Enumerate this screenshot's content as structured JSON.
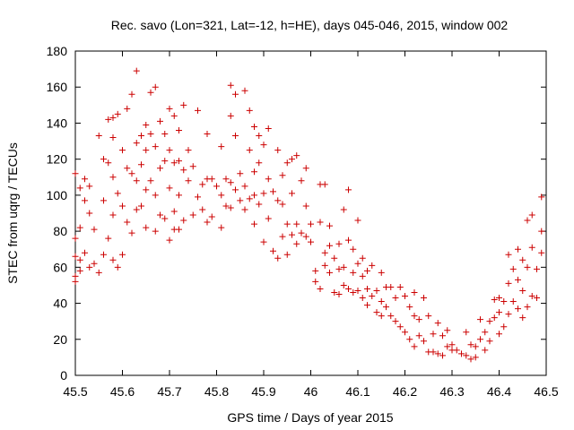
{
  "chart_data": {
    "type": "scatter",
    "title": "Rec. savo (Lon=321, Lat=-12, h=HE), days 045-046, 2015, window 002",
    "xlabel": "GPS time / Days of year 2015",
    "ylabel": "STEC from uqrg / TECUs",
    "xlim": [
      45.5,
      46.5
    ],
    "ylim": [
      0,
      180
    ],
    "xticks": [
      45.5,
      45.6,
      45.7,
      45.8,
      45.9,
      46,
      46.1,
      46.2,
      46.3,
      46.4,
      46.5
    ],
    "xtick_labels": [
      "45.5",
      "45.6",
      "45.7",
      "45.8",
      "45.9",
      "46",
      "46.1",
      "46.2",
      "46.3",
      "46.4",
      "46.5"
    ],
    "yticks": [
      0,
      20,
      40,
      60,
      80,
      100,
      120,
      140,
      160,
      180
    ],
    "ytick_labels": [
      "0",
      "20",
      "40",
      "60",
      "80",
      "100",
      "120",
      "140",
      "160",
      "180"
    ],
    "grid": false,
    "marker": "+",
    "color": "#cc0000",
    "series": [
      {
        "name": "STEC",
        "points": [
          [
            45.5,
            112
          ],
          [
            45.5,
            76
          ],
          [
            45.5,
            66
          ],
          [
            45.5,
            55
          ],
          [
            45.5,
            52
          ],
          [
            45.51,
            104
          ],
          [
            45.51,
            82
          ],
          [
            45.51,
            64
          ],
          [
            45.51,
            58
          ],
          [
            45.52,
            109
          ],
          [
            45.52,
            97
          ],
          [
            45.52,
            68
          ],
          [
            45.53,
            105
          ],
          [
            45.53,
            90
          ],
          [
            45.53,
            60
          ],
          [
            45.54,
            81
          ],
          [
            45.54,
            62
          ],
          [
            45.55,
            133
          ],
          [
            45.55,
            57
          ],
          [
            45.56,
            120
          ],
          [
            45.56,
            97
          ],
          [
            45.56,
            67
          ],
          [
            45.57,
            142
          ],
          [
            45.57,
            118
          ],
          [
            45.57,
            76
          ],
          [
            45.58,
            143
          ],
          [
            45.58,
            132
          ],
          [
            45.58,
            110
          ],
          [
            45.58,
            89
          ],
          [
            45.58,
            64
          ],
          [
            45.59,
            145
          ],
          [
            45.59,
            101
          ],
          [
            45.59,
            60
          ],
          [
            45.6,
            125
          ],
          [
            45.6,
            94
          ],
          [
            45.6,
            67
          ],
          [
            45.61,
            148
          ],
          [
            45.61,
            115
          ],
          [
            45.61,
            85
          ],
          [
            45.62,
            156
          ],
          [
            45.62,
            112
          ],
          [
            45.62,
            79
          ],
          [
            45.63,
            169
          ],
          [
            45.63,
            129
          ],
          [
            45.63,
            108
          ],
          [
            45.63,
            92
          ],
          [
            45.64,
            133
          ],
          [
            45.64,
            117
          ],
          [
            45.64,
            94
          ],
          [
            45.65,
            139
          ],
          [
            45.65,
            125
          ],
          [
            45.65,
            103
          ],
          [
            45.65,
            82
          ],
          [
            45.66,
            157
          ],
          [
            45.66,
            134
          ],
          [
            45.66,
            108
          ],
          [
            45.67,
            160
          ],
          [
            45.67,
            127
          ],
          [
            45.67,
            100
          ],
          [
            45.67,
            80
          ],
          [
            45.68,
            141
          ],
          [
            45.68,
            115
          ],
          [
            45.68,
            89
          ],
          [
            45.69,
            134
          ],
          [
            45.69,
            119
          ],
          [
            45.69,
            87
          ],
          [
            45.7,
            148
          ],
          [
            45.7,
            125
          ],
          [
            45.7,
            104
          ],
          [
            45.7,
            75
          ],
          [
            45.71,
            144
          ],
          [
            45.71,
            118
          ],
          [
            45.71,
            91
          ],
          [
            45.71,
            81
          ],
          [
            45.72,
            136
          ],
          [
            45.72,
            119
          ],
          [
            45.72,
            100
          ],
          [
            45.72,
            81
          ],
          [
            45.73,
            150
          ],
          [
            45.73,
            114
          ],
          [
            45.73,
            86
          ],
          [
            45.74,
            125
          ],
          [
            45.74,
            108
          ],
          [
            45.75,
            116
          ],
          [
            45.75,
            89
          ],
          [
            45.76,
            147
          ],
          [
            45.76,
            99
          ],
          [
            45.77,
            106
          ],
          [
            45.77,
            92
          ],
          [
            45.78,
            134
          ],
          [
            45.78,
            109
          ],
          [
            45.78,
            85
          ],
          [
            45.79,
            109
          ],
          [
            45.79,
            88
          ],
          [
            45.8,
            105
          ],
          [
            45.81,
            127
          ],
          [
            45.81,
            100
          ],
          [
            45.81,
            82
          ],
          [
            45.82,
            109
          ],
          [
            45.82,
            94
          ],
          [
            45.83,
            161
          ],
          [
            45.83,
            144
          ],
          [
            45.83,
            107
          ],
          [
            45.83,
            93
          ],
          [
            45.84,
            156
          ],
          [
            45.84,
            133
          ],
          [
            45.84,
            103
          ],
          [
            45.85,
            112
          ],
          [
            45.85,
            97
          ],
          [
            45.86,
            158
          ],
          [
            45.86,
            105
          ],
          [
            45.86,
            92
          ],
          [
            45.87,
            147
          ],
          [
            45.87,
            125
          ],
          [
            45.87,
            98
          ],
          [
            45.88,
            138
          ],
          [
            45.88,
            113
          ],
          [
            45.88,
            100
          ],
          [
            45.88,
            84
          ],
          [
            45.89,
            133
          ],
          [
            45.89,
            118
          ],
          [
            45.89,
            95
          ],
          [
            45.9,
            128
          ],
          [
            45.9,
            101
          ],
          [
            45.9,
            74
          ],
          [
            45.91,
            137
          ],
          [
            45.91,
            109
          ],
          [
            45.91,
            87
          ],
          [
            45.92,
            102
          ],
          [
            45.92,
            69
          ],
          [
            45.93,
            125
          ],
          [
            45.93,
            97
          ],
          [
            45.93,
            65
          ],
          [
            45.94,
            111
          ],
          [
            45.94,
            95
          ],
          [
            45.94,
            77
          ],
          [
            45.95,
            118
          ],
          [
            45.95,
            84
          ],
          [
            45.95,
            67
          ],
          [
            45.96,
            120
          ],
          [
            45.96,
            101
          ],
          [
            45.96,
            78
          ],
          [
            45.97,
            122
          ],
          [
            45.97,
            84
          ],
          [
            45.97,
            73
          ],
          [
            45.98,
            108
          ],
          [
            45.98,
            79
          ],
          [
            45.99,
            115
          ],
          [
            45.99,
            94
          ],
          [
            45.99,
            77
          ],
          [
            46.0,
            84
          ],
          [
            46.0,
            74
          ],
          [
            46.01,
            58
          ],
          [
            46.01,
            52
          ],
          [
            46.02,
            106
          ],
          [
            46.02,
            85
          ],
          [
            46.02,
            48
          ],
          [
            46.03,
            106
          ],
          [
            46.03,
            68
          ],
          [
            46.03,
            61
          ],
          [
            46.04,
            83
          ],
          [
            46.04,
            72
          ],
          [
            46.04,
            57
          ],
          [
            46.05,
            65
          ],
          [
            46.05,
            46
          ],
          [
            46.06,
            73
          ],
          [
            46.06,
            59
          ],
          [
            46.06,
            45
          ],
          [
            46.07,
            92
          ],
          [
            46.07,
            60
          ],
          [
            46.07,
            50
          ],
          [
            46.08,
            103
          ],
          [
            46.08,
            75
          ],
          [
            46.08,
            48
          ],
          [
            46.09,
            70
          ],
          [
            46.09,
            57
          ],
          [
            46.09,
            46
          ],
          [
            46.1,
            86
          ],
          [
            46.1,
            62
          ],
          [
            46.1,
            47
          ],
          [
            46.11,
            65
          ],
          [
            46.11,
            55
          ],
          [
            46.11,
            43
          ],
          [
            46.12,
            58
          ],
          [
            46.12,
            48
          ],
          [
            46.12,
            39
          ],
          [
            46.13,
            61
          ],
          [
            46.13,
            44
          ],
          [
            46.14,
            47
          ],
          [
            46.14,
            35
          ],
          [
            46.15,
            57
          ],
          [
            46.15,
            41
          ],
          [
            46.15,
            33
          ],
          [
            46.16,
            49
          ],
          [
            46.16,
            38
          ],
          [
            46.17,
            49
          ],
          [
            46.17,
            33
          ],
          [
            46.18,
            43
          ],
          [
            46.18,
            30
          ],
          [
            46.19,
            49
          ],
          [
            46.19,
            27
          ],
          [
            46.2,
            44
          ],
          [
            46.2,
            24
          ],
          [
            46.21,
            38
          ],
          [
            46.21,
            20
          ],
          [
            46.22,
            46
          ],
          [
            46.22,
            33
          ],
          [
            46.22,
            16
          ],
          [
            46.23,
            31
          ],
          [
            46.23,
            22
          ],
          [
            46.24,
            43
          ],
          [
            46.24,
            19
          ],
          [
            46.25,
            33
          ],
          [
            46.25,
            13
          ],
          [
            46.26,
            23
          ],
          [
            46.26,
            13
          ],
          [
            46.27,
            29
          ],
          [
            46.27,
            12
          ],
          [
            46.28,
            22
          ],
          [
            46.28,
            11
          ],
          [
            46.29,
            25
          ],
          [
            46.29,
            16
          ],
          [
            46.3,
            17
          ],
          [
            46.3,
            14
          ],
          [
            46.31,
            14
          ],
          [
            46.32,
            12
          ],
          [
            46.33,
            24
          ],
          [
            46.33,
            11
          ],
          [
            46.34,
            17
          ],
          [
            46.34,
            9
          ],
          [
            46.35,
            16
          ],
          [
            46.35,
            10
          ],
          [
            46.36,
            31
          ],
          [
            46.36,
            20
          ],
          [
            46.37,
            24
          ],
          [
            46.37,
            14
          ],
          [
            46.38,
            30
          ],
          [
            46.38,
            19
          ],
          [
            46.39,
            42
          ],
          [
            46.39,
            32
          ],
          [
            46.4,
            43
          ],
          [
            46.4,
            35
          ],
          [
            46.4,
            23
          ],
          [
            46.41,
            41
          ],
          [
            46.41,
            27
          ],
          [
            46.42,
            67
          ],
          [
            46.42,
            51
          ],
          [
            46.42,
            34
          ],
          [
            46.43,
            59
          ],
          [
            46.43,
            41
          ],
          [
            46.44,
            70
          ],
          [
            46.44,
            53
          ],
          [
            46.44,
            37
          ],
          [
            46.45,
            64
          ],
          [
            46.45,
            47
          ],
          [
            46.45,
            32
          ],
          [
            46.46,
            86
          ],
          [
            46.46,
            60
          ],
          [
            46.46,
            38
          ],
          [
            46.47,
            89
          ],
          [
            46.47,
            71
          ],
          [
            46.47,
            44
          ],
          [
            46.48,
            59
          ],
          [
            46.48,
            43
          ],
          [
            46.49,
            99
          ],
          [
            46.49,
            80
          ],
          [
            46.49,
            68
          ]
        ]
      }
    ]
  }
}
